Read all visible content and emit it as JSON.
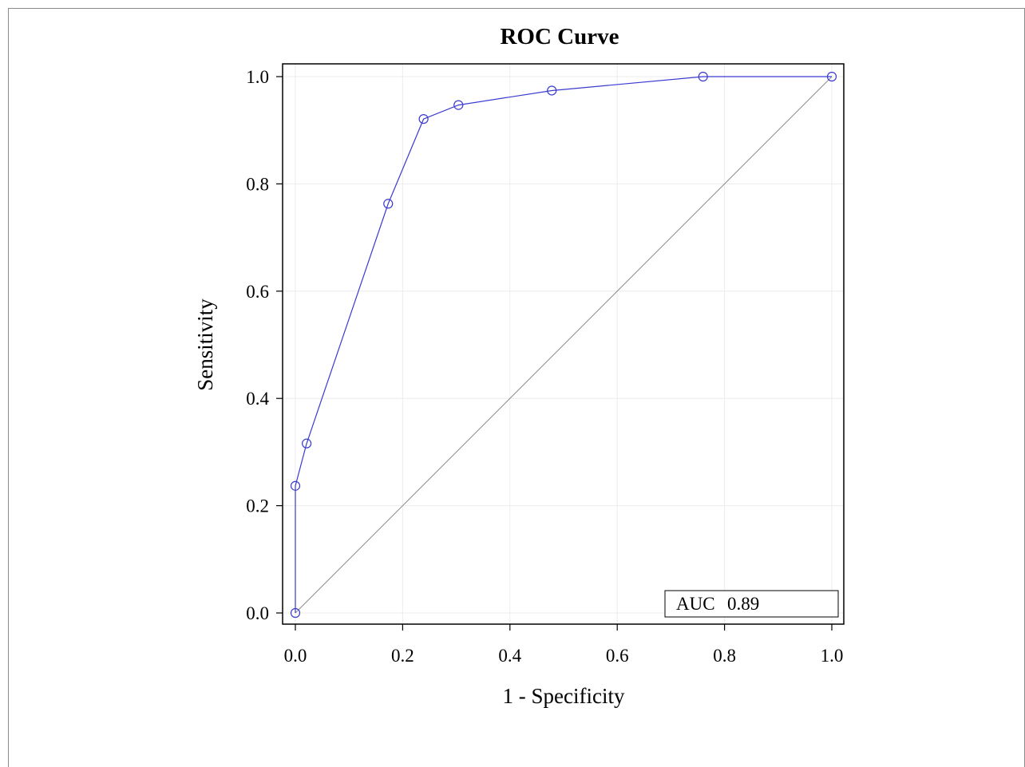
{
  "chart_data": {
    "type": "line",
    "title": "ROC Curve",
    "xlabel": "1 - Specificity",
    "ylabel": "Sensitivity",
    "xlim": [
      0.0,
      1.0
    ],
    "ylim": [
      0.0,
      1.0
    ],
    "x_ticks": [
      "0.0",
      "0.2",
      "0.4",
      "0.6",
      "0.8",
      "1.0"
    ],
    "y_ticks": [
      "0.0",
      "0.2",
      "0.4",
      "0.6",
      "0.8",
      "1.0"
    ],
    "grid": true,
    "series": [
      {
        "color": "#3a3ad0",
        "marker": "open-circle",
        "x": [
          0.0,
          0.0,
          0.021,
          0.173,
          0.239,
          0.304,
          0.478,
          0.76,
          1.0
        ],
        "y": [
          0.0,
          0.237,
          0.316,
          0.763,
          0.921,
          0.947,
          0.974,
          1.0,
          1.0
        ]
      }
    ],
    "reference_line": {
      "color": "#8c8c8c",
      "x": [
        0.0,
        1.0
      ],
      "y": [
        0.0,
        1.0
      ]
    },
    "inset": {
      "label": "AUC",
      "value": "0.89",
      "placement": "bottom-right"
    }
  }
}
